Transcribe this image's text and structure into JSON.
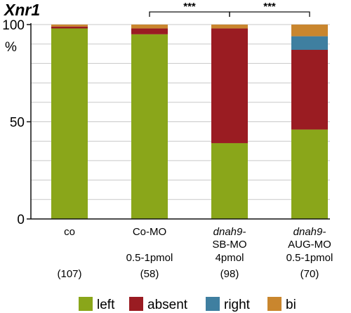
{
  "chart_data": {
    "type": "bar",
    "stacked": true,
    "title": "Xnr1",
    "ylabel": "",
    "y_unit": "%",
    "ylim": [
      0,
      100
    ],
    "yticks": [
      0,
      50,
      100
    ],
    "grid": true,
    "legend_position": "bottom",
    "categories": [
      {
        "lines": [
          {
            "text": "co",
            "italic": false
          }
        ],
        "n": "(107)"
      },
      {
        "lines": [
          {
            "text": "Co-MO",
            "italic": false
          },
          {
            "text": "",
            "italic": false
          },
          {
            "text": "0.5-1pmol",
            "italic": false
          }
        ],
        "n": "(58)"
      },
      {
        "lines": [
          {
            "text": "dnah9-",
            "italic": true
          },
          {
            "text": "SB-MO",
            "italic": false
          },
          {
            "text": "4pmol",
            "italic": false
          }
        ],
        "n": "(98)"
      },
      {
        "lines": [
          {
            "text": "dnah9-",
            "italic": true
          },
          {
            "text": "AUG-MO",
            "italic": false
          },
          {
            "text": "0.5-1pmol",
            "italic": false
          }
        ],
        "n": "(70)"
      }
    ],
    "series": [
      {
        "name": "left",
        "color": "#8aa61a",
        "values": [
          98,
          95,
          39,
          46
        ]
      },
      {
        "name": "absent",
        "color": "#9a1c22",
        "values": [
          1,
          3,
          59,
          41
        ]
      },
      {
        "name": "right",
        "color": "#3f7fa0",
        "values": [
          0,
          0,
          0,
          7
        ]
      },
      {
        "name": "bi",
        "color": "#c9862e",
        "values": [
          1,
          2,
          2,
          6
        ]
      }
    ],
    "significance": [
      {
        "from": 1,
        "to": 2,
        "label": "***"
      },
      {
        "from": 2,
        "to": 3,
        "label": "***"
      }
    ]
  }
}
